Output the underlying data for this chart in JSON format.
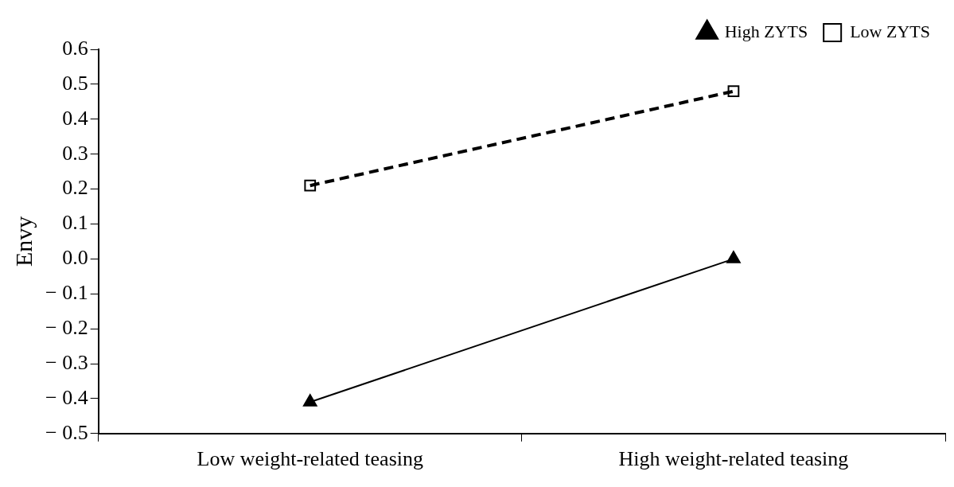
{
  "chart_data": {
    "type": "line",
    "ylabel": "Envy",
    "categories": [
      "Low weight-related teasing",
      "High weight-related teasing"
    ],
    "series": [
      {
        "name": "High ZYTS",
        "color": "#000000",
        "values": [
          -0.41,
          0.0
        ],
        "marker": "triangle",
        "line_style": "solid"
      },
      {
        "name": "Low ZYTS",
        "color": "#000000",
        "values": [
          0.21,
          0.48
        ],
        "marker": "square",
        "line_style": "dashed"
      }
    ],
    "ylim": [
      -0.5,
      0.6
    ],
    "yticks": [
      {
        "value": -0.5,
        "label": "− 0.5"
      },
      {
        "value": -0.4,
        "label": "− 0.4"
      },
      {
        "value": -0.3,
        "label": "− 0.3"
      },
      {
        "value": -0.2,
        "label": "− 0.2"
      },
      {
        "value": -0.1,
        "label": "− 0.1"
      },
      {
        "value": 0,
        "label": "0.0"
      },
      {
        "value": 0.1,
        "label": "0.1"
      },
      {
        "value": 0.2,
        "label": "0.2"
      },
      {
        "value": 0.3,
        "label": "0.3"
      },
      {
        "value": 0.4,
        "label": "0.4"
      },
      {
        "value": 0.5,
        "label": "0.5"
      },
      {
        "value": 0.6,
        "label": "0.6"
      }
    ],
    "grid": false,
    "legend": "top right"
  }
}
